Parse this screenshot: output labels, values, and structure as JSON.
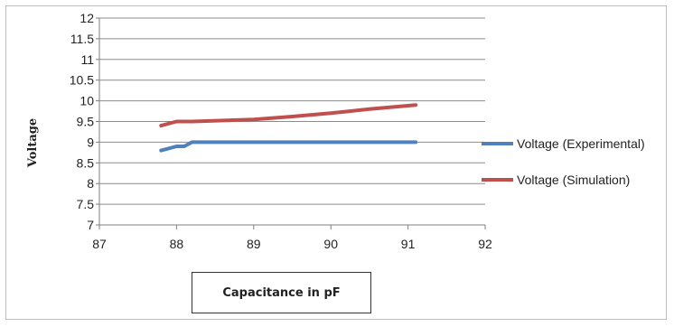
{
  "chart_data": {
    "type": "line",
    "title": "",
    "xlabel": "Capacitance in pF",
    "ylabel": "Voltage",
    "xlim": [
      87,
      92
    ],
    "ylim": [
      7,
      12
    ],
    "x_ticks": [
      87,
      88,
      89,
      90,
      91,
      92
    ],
    "y_ticks": [
      7,
      7.5,
      8,
      8.5,
      9,
      9.5,
      10,
      10.5,
      11,
      11.5,
      12
    ],
    "grid": "horizontal",
    "legend_position": "right",
    "series": [
      {
        "name": "Voltage (Experimental)",
        "color": "#4F81BD",
        "x": [
          87.8,
          87.9,
          88.0,
          88.1,
          88.2,
          88.5,
          89.0,
          90.0,
          91.1
        ],
        "y": [
          8.8,
          8.85,
          8.9,
          8.9,
          9.0,
          9.0,
          9.0,
          9.0,
          9.0
        ]
      },
      {
        "name": "Voltage (Simulation)",
        "color": "#C0504D",
        "x": [
          87.8,
          88.0,
          88.2,
          89.0,
          89.5,
          90.0,
          90.5,
          91.1
        ],
        "y": [
          9.4,
          9.5,
          9.5,
          9.55,
          9.62,
          9.7,
          9.8,
          9.9
        ]
      }
    ]
  }
}
